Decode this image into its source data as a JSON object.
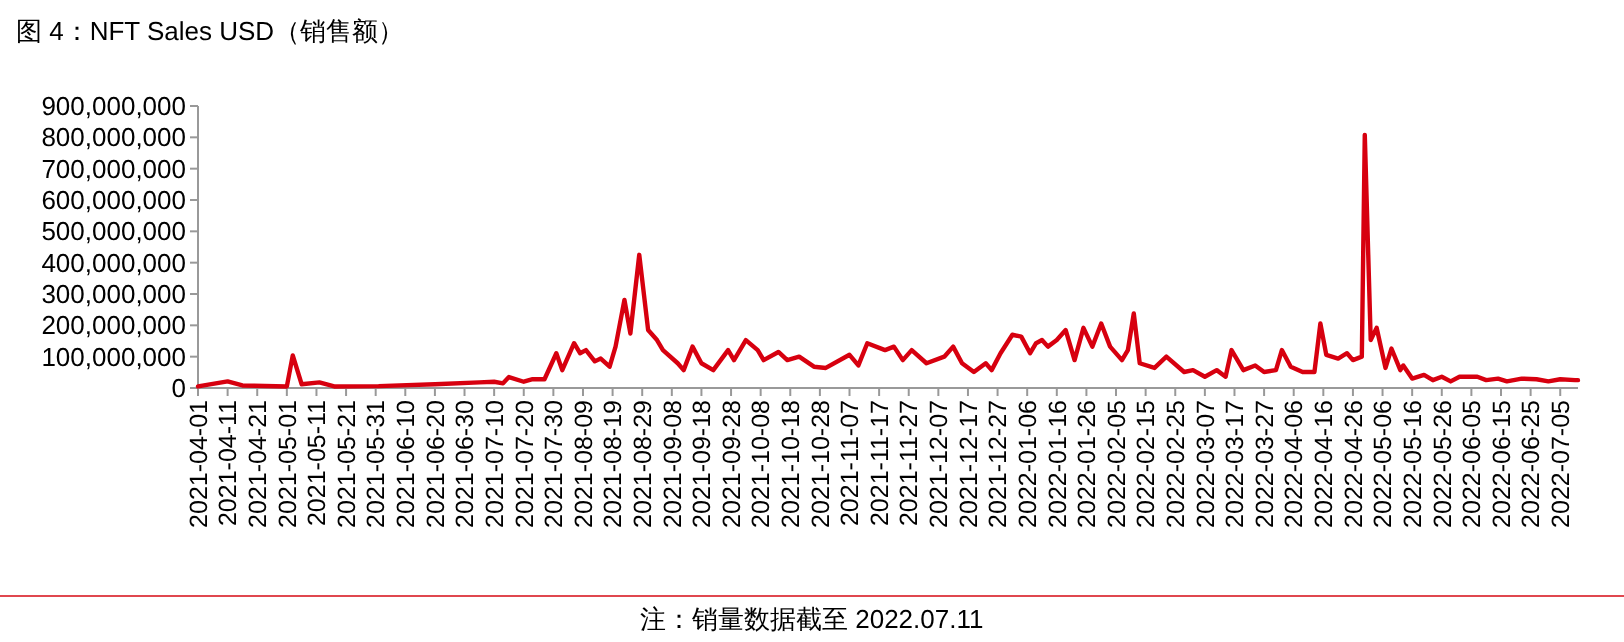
{
  "chart_data": {
    "type": "line",
    "title": "图 4：NFT Sales USD（销售额）",
    "annotations": [
      "注：销量数据截至 2022.07.11"
    ],
    "x": [
      "2021-04-01",
      "2021-04-11",
      "2021-04-16",
      "2021-05-01",
      "2021-05-03",
      "2021-05-06",
      "2021-05-12",
      "2021-05-17",
      "2021-06-01",
      "2021-06-20",
      "2021-07-05",
      "2021-07-10",
      "2021-07-13",
      "2021-07-15",
      "2021-07-20",
      "2021-07-23",
      "2021-07-27",
      "2021-07-31",
      "2021-08-02",
      "2021-08-06",
      "2021-08-08",
      "2021-08-10",
      "2021-08-13",
      "2021-08-15",
      "2021-08-18",
      "2021-08-20",
      "2021-08-23",
      "2021-08-25",
      "2021-08-28",
      "2021-08-31",
      "2021-09-03",
      "2021-09-05",
      "2021-09-10",
      "2021-09-12",
      "2021-09-15",
      "2021-09-18",
      "2021-09-22",
      "2021-09-27",
      "2021-09-29",
      "2021-10-03",
      "2021-10-07",
      "2021-10-09",
      "2021-10-14",
      "2021-10-17",
      "2021-10-21",
      "2021-10-26",
      "2021-10-30",
      "2021-11-07",
      "2021-11-10",
      "2021-11-13",
      "2021-11-19",
      "2021-11-22",
      "2021-11-25",
      "2021-11-28",
      "2021-12-03",
      "2021-12-09",
      "2021-12-12",
      "2021-12-15",
      "2021-12-19",
      "2021-12-23",
      "2021-12-25",
      "2021-12-28",
      "2022-01-01",
      "2022-01-04",
      "2022-01-07",
      "2022-01-09",
      "2022-01-11",
      "2022-01-13",
      "2022-01-16",
      "2022-01-19",
      "2022-01-22",
      "2022-01-25",
      "2022-01-28",
      "2022-01-31",
      "2022-02-03",
      "2022-02-07",
      "2022-02-09",
      "2022-02-11",
      "2022-02-13",
      "2022-02-18",
      "2022-02-22",
      "2022-02-28",
      "2022-03-03",
      "2022-03-07",
      "2022-03-11",
      "2022-03-14",
      "2022-03-16",
      "2022-03-20",
      "2022-03-24",
      "2022-03-27",
      "2022-03-31",
      "2022-04-02",
      "2022-04-05",
      "2022-04-09",
      "2022-04-13",
      "2022-04-15",
      "2022-04-17",
      "2022-04-21",
      "2022-04-24",
      "2022-04-26",
      "2022-04-29",
      "2022-04-30",
      "2022-05-02",
      "2022-05-04",
      "2022-05-07",
      "2022-05-09",
      "2022-05-12",
      "2022-05-13",
      "2022-05-16",
      "2022-05-20",
      "2022-05-23",
      "2022-05-26",
      "2022-05-29",
      "2022-06-01",
      "2022-06-07",
      "2022-06-10",
      "2022-06-14",
      "2022-06-17",
      "2022-06-22",
      "2022-06-27",
      "2022-07-01",
      "2022-07-05",
      "2022-07-10",
      "2022-07-11"
    ],
    "series": [
      {
        "color": "#d7000f",
        "values": [
          5000000,
          21000000,
          8000000,
          5000000,
          104000000,
          12000000,
          18000000,
          5000000,
          6000000,
          12000000,
          18000000,
          20000000,
          15000000,
          35000000,
          20000000,
          28000000,
          28000000,
          111000000,
          57000000,
          143000000,
          111000000,
          121000000,
          85000000,
          94000000,
          68000000,
          132000000,
          281000000,
          174000000,
          425000000,
          185000000,
          153000000,
          121000000,
          79000000,
          57000000,
          132000000,
          79000000,
          57000000,
          121000000,
          89000000,
          153000000,
          121000000,
          89000000,
          115000000,
          89000000,
          100000000,
          68000000,
          64000000,
          106000000,
          72000000,
          143000000,
          121000000,
          132000000,
          89000000,
          121000000,
          79000000,
          100000000,
          132000000,
          79000000,
          51000000,
          79000000,
          57000000,
          111000000,
          170000000,
          164000000,
          111000000,
          143000000,
          153000000,
          132000000,
          153000000,
          185000000,
          89000000,
          192000000,
          132000000,
          206000000,
          132000000,
          89000000,
          121000000,
          238000000,
          79000000,
          64000000,
          100000000,
          51000000,
          57000000,
          36000000,
          57000000,
          36000000,
          121000000,
          57000000,
          72000000,
          51000000,
          57000000,
          121000000,
          68000000,
          51000000,
          51000000,
          206000000,
          106000000,
          94000000,
          111000000,
          89000000,
          100000000,
          808000000,
          153000000,
          192000000,
          64000000,
          126000000,
          57000000,
          72000000,
          30000000,
          42000000,
          25000000,
          36000000,
          21000000,
          36000000,
          36000000,
          25000000,
          30000000,
          21000000,
          30000000,
          28000000,
          21000000,
          28000000,
          25000000,
          25000000
        ]
      }
    ],
    "xlim": [
      "2021-04-01",
      "2022-07-11"
    ],
    "xticks": [
      "2021-04-01",
      "2021-04-11",
      "2021-04-21",
      "2021-05-01",
      "2021-05-11",
      "2021-05-21",
      "2021-05-31",
      "2021-06-10",
      "2021-06-20",
      "2021-06-30",
      "2021-07-10",
      "2021-07-20",
      "2021-07-30",
      "2021-08-09",
      "2021-08-19",
      "2021-08-29",
      "2021-09-08",
      "2021-09-18",
      "2021-09-28",
      "2021-10-08",
      "2021-10-18",
      "2021-10-28",
      "2021-11-07",
      "2021-11-17",
      "2021-11-27",
      "2021-12-07",
      "2021-12-17",
      "2021-12-27",
      "2022-01-06",
      "2022-01-16",
      "2022-01-26",
      "2022-02-05",
      "2022-02-15",
      "2022-02-25",
      "2022-03-07",
      "2022-03-17",
      "2022-03-27",
      "2022-04-06",
      "2022-04-16",
      "2022-04-26",
      "2022-05-06",
      "2022-05-16",
      "2022-05-26",
      "2022-06-05",
      "2022-06-15",
      "2022-06-25",
      "2022-07-05"
    ],
    "ylim": [
      0,
      900000000
    ],
    "yticks": [
      0,
      {
        "value": 100000000,
        "label": "100,000,000"
      },
      {
        "value": 200000000,
        "label": "200,000,000"
      },
      {
        "value": 300000000,
        "label": "300,000,000"
      },
      {
        "value": 400000000,
        "label": "400,000,000"
      },
      {
        "value": 500000000,
        "label": "500,000,000"
      },
      {
        "value": 600000000,
        "label": "600,000,000"
      },
      {
        "value": 700000000,
        "label": "700,000,000"
      },
      {
        "value": 800000000,
        "label": "800,000,000"
      },
      {
        "value": 900000000,
        "label": "900,000,000"
      }
    ],
    "grid": false,
    "marker": "none",
    "line_style": "solid"
  }
}
